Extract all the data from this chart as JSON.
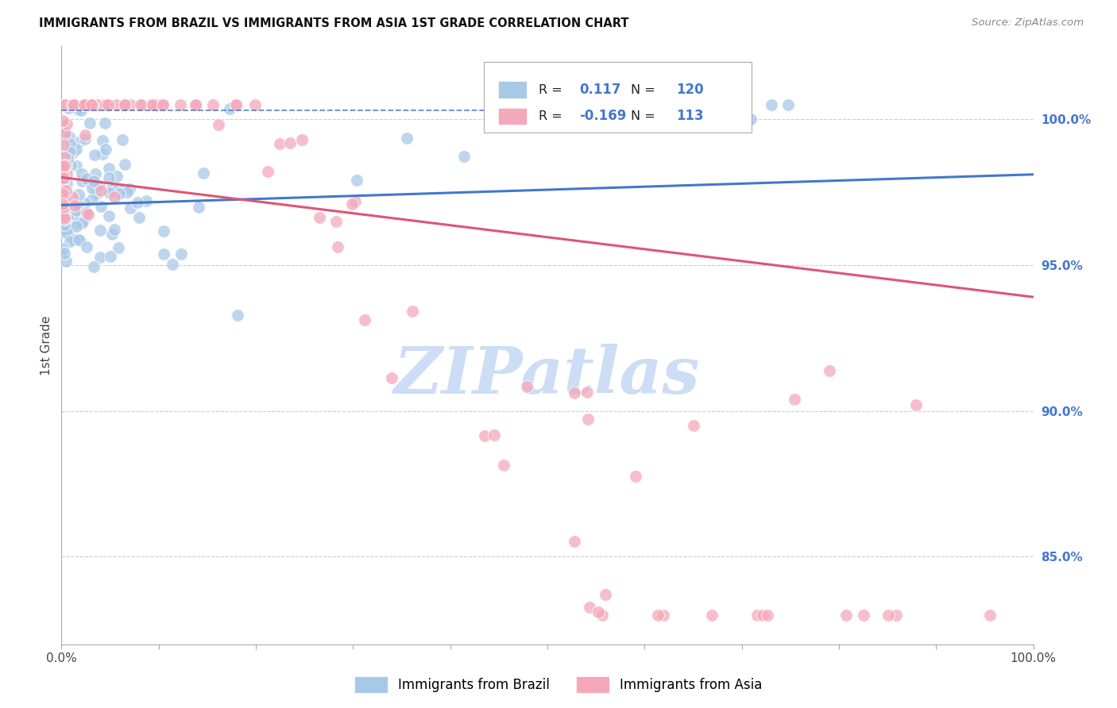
{
  "title": "IMMIGRANTS FROM BRAZIL VS IMMIGRANTS FROM ASIA 1ST GRADE CORRELATION CHART",
  "source": "Source: ZipAtlas.com",
  "ylabel": "1st Grade",
  "brazil_R": 0.117,
  "brazil_N": 120,
  "asia_R": -0.169,
  "asia_N": 113,
  "brazil_color": "#a8c8e8",
  "asia_color": "#f4a8ba",
  "brazil_line_color": "#4477cc",
  "asia_line_color": "#dd5577",
  "grid_color": "#cccccc",
  "title_color": "#111111",
  "right_label_color": "#4477cc",
  "xlim": [
    0.0,
    1.0
  ],
  "ylim": [
    0.82,
    1.025
  ],
  "yticks_right": [
    0.85,
    0.9,
    0.95,
    1.0
  ],
  "ytick_right_labels": [
    "85.0%",
    "90.0%",
    "95.0%",
    "100.0%"
  ],
  "brazil_trend_y0": 0.9705,
  "brazil_trend_y1": 0.981,
  "asia_trend_y0": 0.98,
  "asia_trend_y1": 0.939,
  "dashed_line_y": 1.003,
  "background_color": "#ffffff",
  "watermark_color": "#ccddf5"
}
